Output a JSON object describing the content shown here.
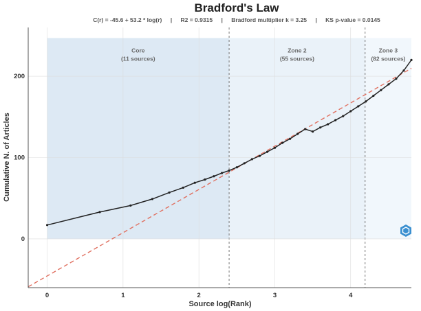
{
  "chart_data": {
    "type": "line",
    "title": "Bradford's Law",
    "subtitle": {
      "formula": "C(r) = -45.6 + 53.2 * log(r)",
      "r2": "R2 = 0.9315",
      "multiplier": "Bradford multiplier k = 3.25",
      "ks": "KS p-value = 0.0145",
      "separator": "|"
    },
    "xlabel": "Source log(Rank)",
    "ylabel": "Cumulative N. of Articles",
    "xlim": [
      -0.25,
      4.8
    ],
    "ylim": [
      -60,
      260
    ],
    "x_ticks": [
      0,
      1,
      2,
      3,
      4
    ],
    "y_ticks": [
      0,
      100,
      200
    ],
    "grid": true,
    "fit_line": {
      "intercept": -45.6,
      "slope": 53.2,
      "color": "#e07060",
      "style": "dashed"
    },
    "zones": [
      {
        "name": "Core",
        "sources": "(11 sources)",
        "x_start": 0,
        "x_end": 2.398,
        "color": "#dde9f4"
      },
      {
        "name": "Zone 2",
        "sources": "(55 sources)",
        "x_start": 2.398,
        "x_end": 4.19,
        "color": "#eaf2f9"
      },
      {
        "name": "Zone 3",
        "sources": "(82 sources)",
        "x_start": 4.19,
        "x_end": 4.8,
        "color": "#f1f7fc"
      }
    ],
    "zone_top": 247,
    "series": [
      {
        "color": "#222222",
        "x": [
          0,
          0.693,
          1.099,
          1.386,
          1.609,
          1.792,
          1.946,
          2.079,
          2.197,
          2.303,
          2.398,
          2.5,
          2.6,
          2.7,
          2.8,
          2.9,
          3.0,
          3.1,
          3.2,
          3.3,
          3.4,
          3.5,
          3.6,
          3.7,
          3.8,
          3.9,
          4.0,
          4.1,
          4.2,
          4.3,
          4.4,
          4.5,
          4.6,
          4.7,
          4.8
        ],
        "values": [
          17,
          33,
          41,
          49,
          57,
          63,
          69,
          73,
          77,
          81,
          84,
          88,
          93,
          98,
          102,
          107,
          112,
          118,
          123,
          129,
          135,
          132,
          137,
          141,
          146,
          151,
          157,
          163,
          169,
          176,
          183,
          190,
          197,
          207,
          220
        ]
      }
    ]
  }
}
